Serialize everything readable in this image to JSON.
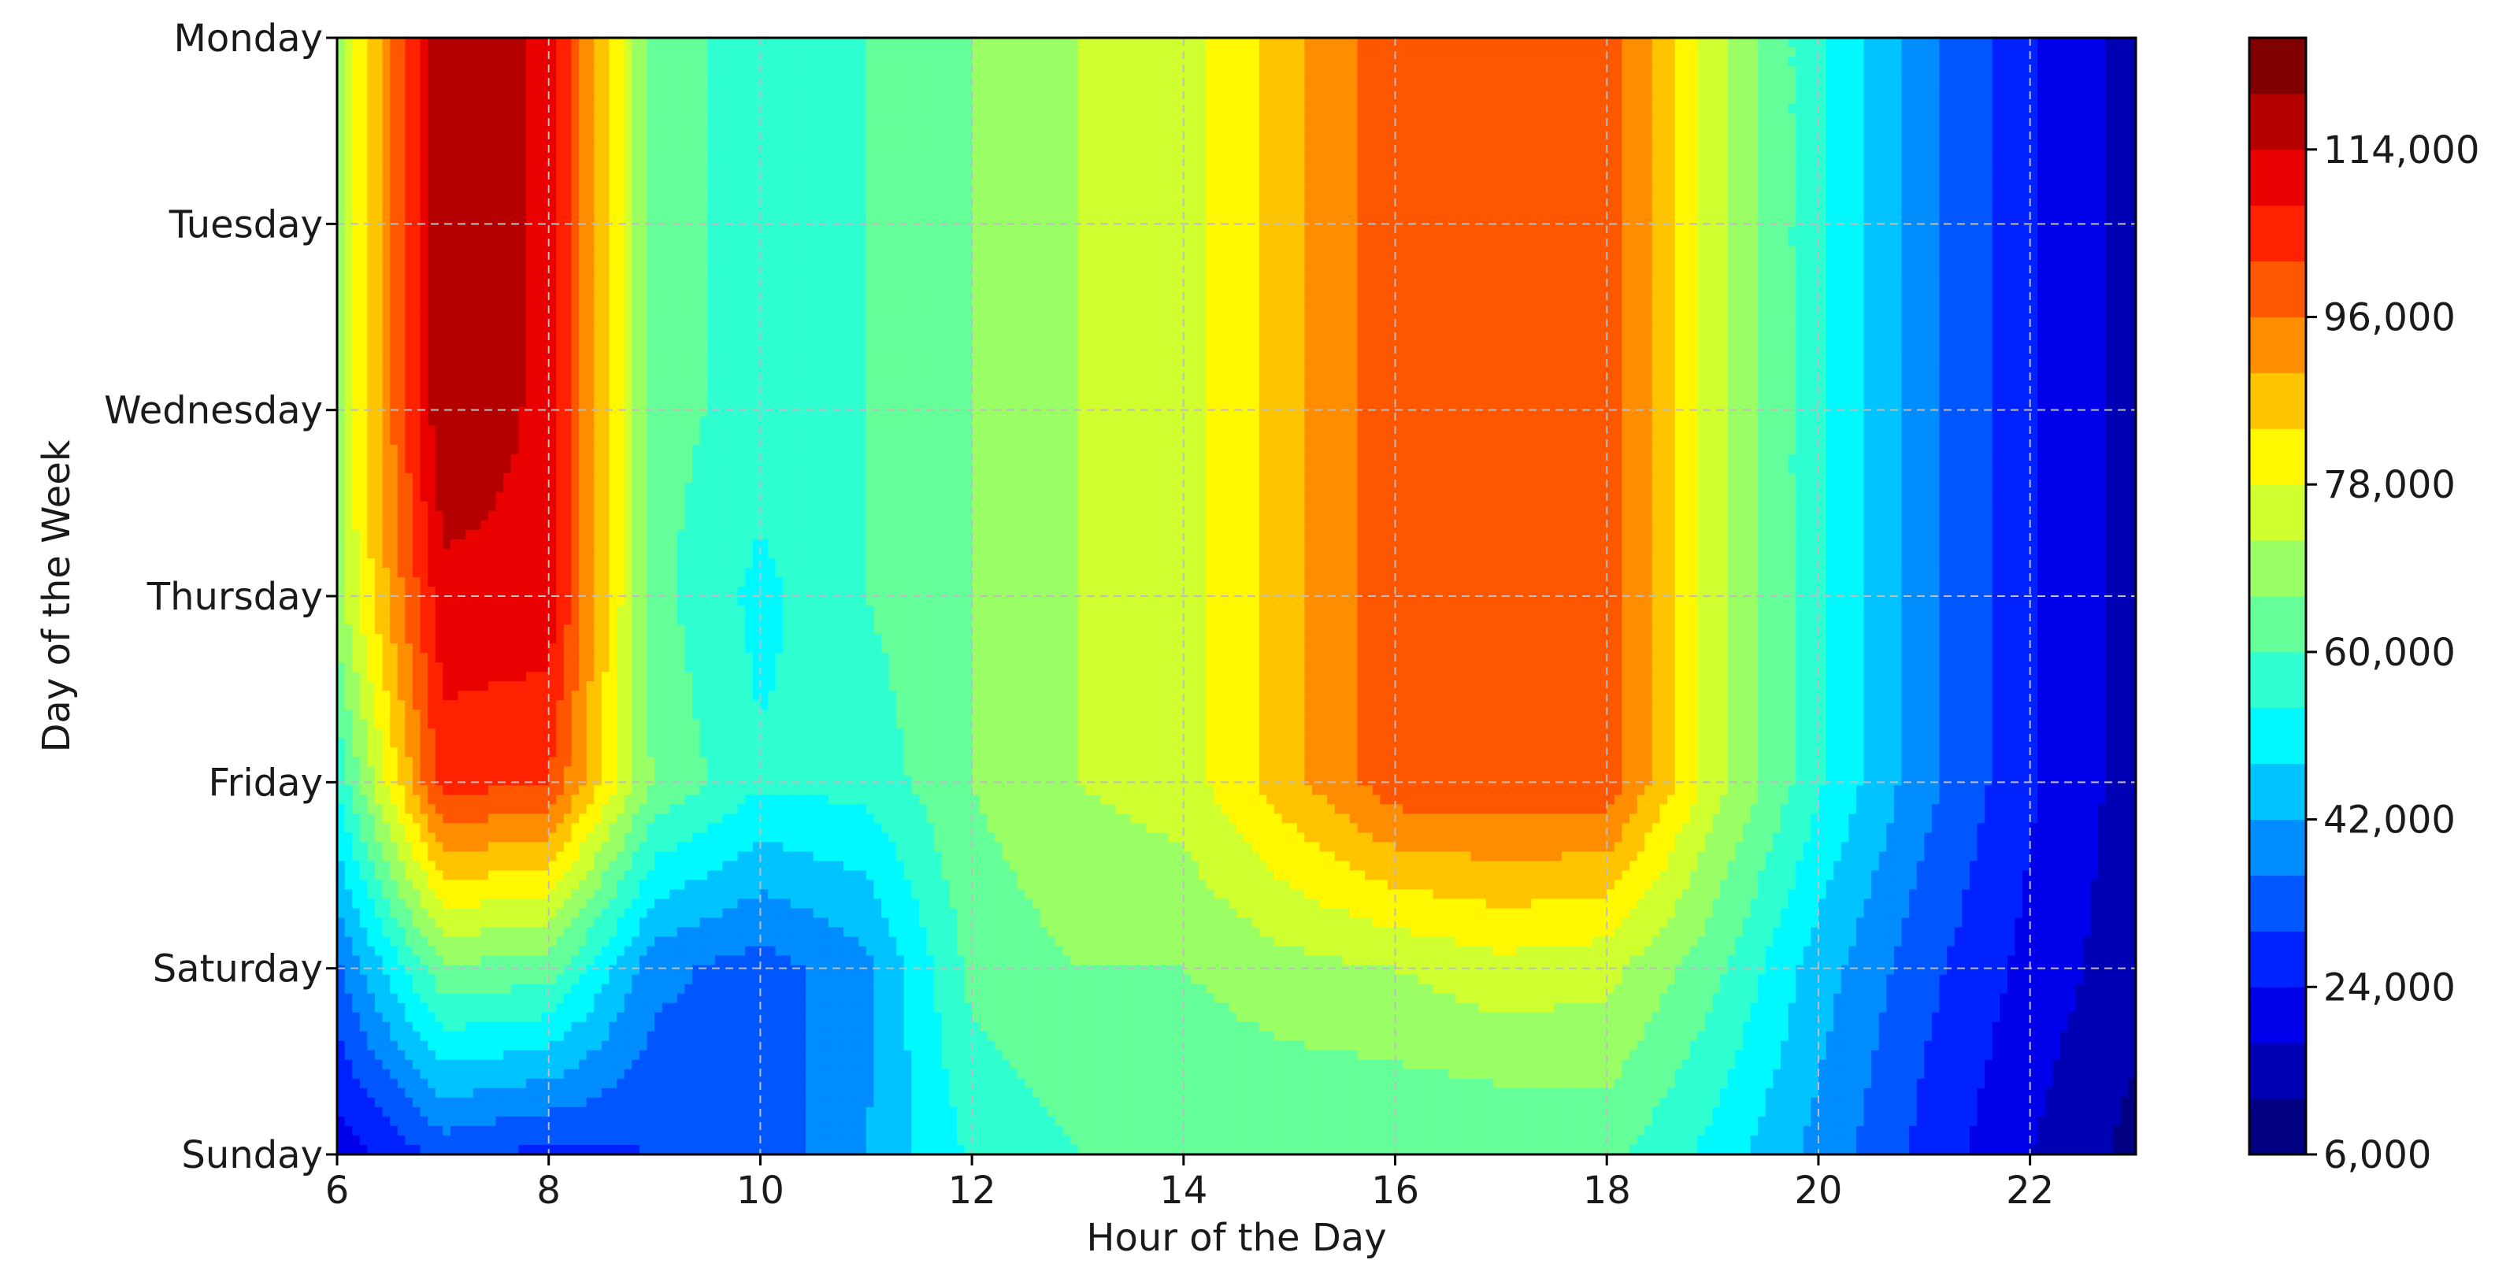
{
  "chart_data": {
    "type": "heatmap",
    "title": "",
    "xlabel": "Hour of the Day",
    "ylabel": "Day of the Week",
    "x": [
      6,
      7,
      8,
      9,
      10,
      11,
      12,
      13,
      14,
      15,
      16,
      17,
      18,
      19,
      20,
      21,
      22,
      23
    ],
    "x_ticks": [
      6,
      8,
      10,
      12,
      14,
      16,
      18,
      20,
      22
    ],
    "xlim": [
      6,
      23
    ],
    "y_categories": [
      "Monday",
      "Tuesday",
      "Wednesday",
      "Thursday",
      "Friday",
      "Saturday",
      "Sunday"
    ],
    "z": [
      [
        70000,
        120000,
        112000,
        62000,
        58000,
        60000,
        66000,
        72000,
        75000,
        88000,
        100000,
        100000,
        100000,
        75000,
        55000,
        38000,
        25000,
        15000
      ],
      [
        70000,
        120000,
        112000,
        62000,
        58000,
        60000,
        66000,
        72000,
        75000,
        88000,
        100000,
        100000,
        100000,
        75000,
        55000,
        38000,
        25000,
        15000
      ],
      [
        70000,
        120000,
        112000,
        62000,
        58000,
        60000,
        66000,
        72000,
        75000,
        88000,
        100000,
        100000,
        100000,
        75000,
        55000,
        38000,
        25000,
        15000
      ],
      [
        70000,
        112000,
        112000,
        62000,
        52000,
        60000,
        66000,
        72000,
        75000,
        88000,
        100000,
        100000,
        100000,
        75000,
        55000,
        38000,
        25000,
        15000
      ],
      [
        55000,
        105000,
        102000,
        65000,
        55000,
        56000,
        66000,
        72000,
        75000,
        88000,
        100000,
        100000,
        100000,
        75000,
        55000,
        38000,
        25000,
        15000
      ],
      [
        35000,
        65000,
        63000,
        38000,
        33000,
        40000,
        62000,
        66000,
        66000,
        70000,
        72000,
        76000,
        74000,
        62000,
        45000,
        32000,
        22000,
        14000
      ],
      [
        20000,
        32000,
        28000,
        30000,
        32000,
        42000,
        55000,
        60000,
        60000,
        60000,
        60000,
        60000,
        62000,
        52000,
        40000,
        28000,
        18000,
        10000
      ]
    ],
    "levels": [
      6000,
      12000,
      18000,
      24000,
      30000,
      36000,
      42000,
      48000,
      54000,
      60000,
      66000,
      72000,
      78000,
      84000,
      90000,
      96000,
      102000,
      108000,
      114000,
      120000,
      126000
    ],
    "colorbar_ticks": [
      6000,
      24000,
      42000,
      60000,
      78000,
      96000,
      114000
    ],
    "colorbar_tick_labels": [
      "6,000",
      "24,000",
      "42,000",
      "60,000",
      "78,000",
      "96,000",
      "114,000"
    ],
    "colormap": "jet",
    "grid": true
  }
}
